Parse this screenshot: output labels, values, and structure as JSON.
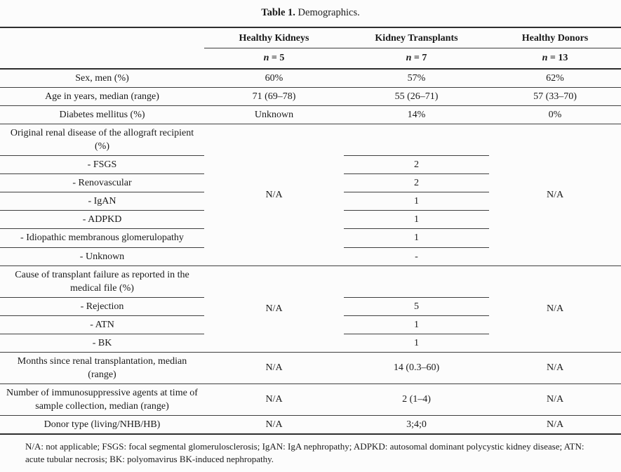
{
  "caption": {
    "label": "Table 1.",
    "title": "Demographics."
  },
  "header": {
    "groups": [
      "Healthy Kidneys",
      "Kidney Transplants",
      "Healthy Donors"
    ],
    "counts": [
      {
        "sym": "n",
        "rest": " = 5"
      },
      {
        "sym": "n",
        "rest": " = 7"
      },
      {
        "sym": "n",
        "rest": " = 13"
      }
    ]
  },
  "rows_top": [
    {
      "label": "Sex, men (%)",
      "values": [
        "60%",
        "57%",
        "62%"
      ]
    },
    {
      "label": "Age in years, median (range)",
      "values": [
        "71 (69–78)",
        "55 (26–71)",
        "57 (33–70)"
      ]
    },
    {
      "label": "Diabetes mellitus (%)",
      "values": [
        "Unknown",
        "14%",
        "0%"
      ]
    }
  ],
  "section_renal_disease": {
    "header": "Original renal disease of the allograft recipient (%)",
    "na_left": "N/A",
    "na_right": "N/A",
    "subrows": [
      {
        "label": "- FSGS",
        "value": "2"
      },
      {
        "label": "- Renovascular",
        "value": "2"
      },
      {
        "label": "- IgAN",
        "value": "1"
      },
      {
        "label": "- ADPKD",
        "value": "1"
      },
      {
        "label": "- Idiopathic membranous glomerulopathy",
        "value": "1"
      },
      {
        "label": "- Unknown",
        "value": "-"
      }
    ]
  },
  "section_transplant_failure": {
    "header": "Cause of transplant failure as reported in the medical file (%)",
    "na_left": "N/A",
    "na_right": "N/A",
    "subrows": [
      {
        "label": "- Rejection",
        "value": "5"
      },
      {
        "label": "- ATN",
        "value": "1"
      },
      {
        "label": "- BK",
        "value": "1"
      }
    ]
  },
  "rows_bottom": [
    {
      "label": "Months since renal transplantation, median (range)",
      "values": [
        "N/A",
        "14 (0.3–60)",
        "N/A"
      ]
    },
    {
      "label": "Number of immunosuppressive agents at time of sample collection, median (range)",
      "values": [
        "N/A",
        "2 (1–4)",
        "N/A"
      ]
    },
    {
      "label": "Donor type (living/NHB/HB)",
      "values": [
        "N/A",
        "3;4;0",
        "N/A"
      ]
    }
  ],
  "footnote": "N/A: not applicable; FSGS: focal segmental glomerulosclerosis; IgAN: IgA nephropathy; ADPKD: autosomal dominant polycystic kidney disease; ATN: acute tubular necrosis; BK: polyomavirus BK-induced nephropathy.",
  "colors": {
    "text": "#1a1a1a",
    "rule_thick": "#2e2e2e",
    "rule_thin": "#3f3f3f",
    "background": "#fcfcfc"
  }
}
